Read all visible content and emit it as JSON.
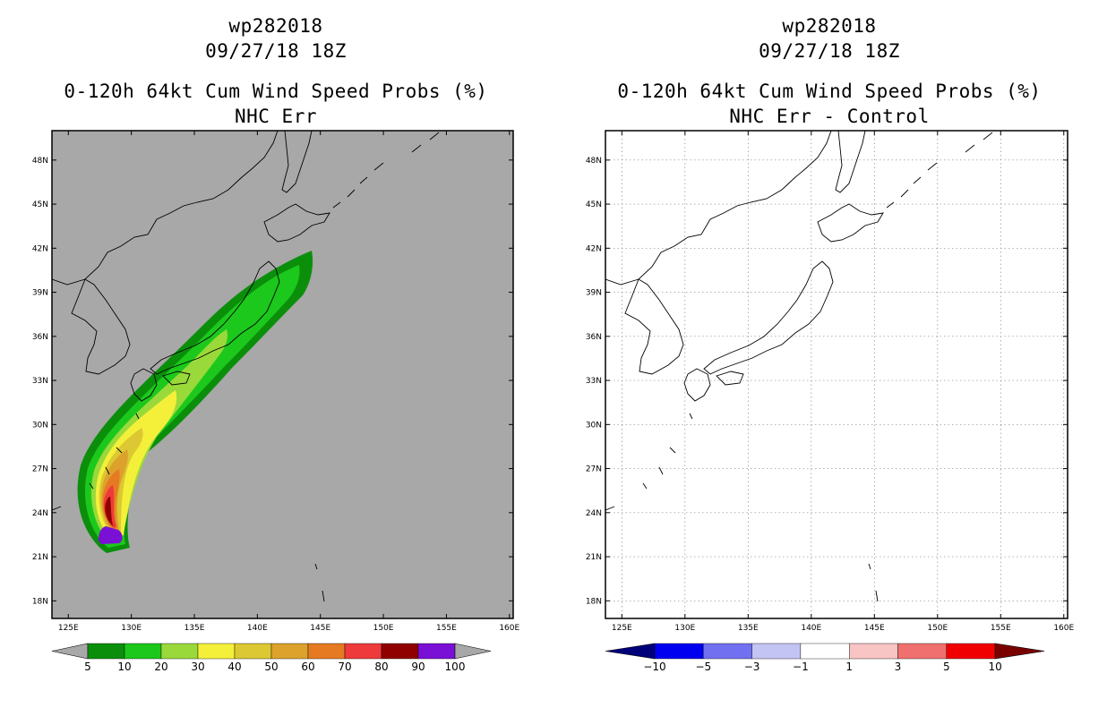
{
  "chart_data": [
    {
      "type": "heatmap",
      "storm_id": "wp282018",
      "datetime": "09/27/18 18Z",
      "title": "0-120h 64kt Cum Wind Speed Probs (%)",
      "subtitle": "NHC Err",
      "x_ticks": [
        "125E",
        "130E",
        "135E",
        "140E",
        "145E",
        "150E",
        "155E",
        "160E"
      ],
      "y_ticks": [
        "18N",
        "21N",
        "24N",
        "27N",
        "30N",
        "33N",
        "36N",
        "39N",
        "42N",
        "45N",
        "48N"
      ],
      "xlim": [
        123.7,
        160.3
      ],
      "ylim": [
        16.8,
        50.0
      ],
      "colorbar": {
        "labels": [
          "5",
          "10",
          "20",
          "30",
          "40",
          "50",
          "60",
          "70",
          "80",
          "90",
          "100"
        ],
        "colors": [
          "#0b8f0b",
          "#1cc81c",
          "#9ad93a",
          "#f4f03a",
          "#dcc832",
          "#dca22c",
          "#e67a22",
          "#ee3a3a",
          "#900000",
          "#7a0fd6"
        ]
      },
      "probability_bands": [
        {
          "threshold": "5",
          "color": "#0b8f0b"
        },
        {
          "threshold": "10",
          "color": "#1cc81c"
        },
        {
          "threshold": "20",
          "color": "#9ad93a"
        },
        {
          "threshold": "30",
          "color": "#f4f03a"
        },
        {
          "threshold": "40",
          "color": "#dcc832"
        },
        {
          "threshold": "50",
          "color": "#dca22c"
        },
        {
          "threshold": "60",
          "color": "#e67a22"
        },
        {
          "threshold": "70",
          "color": "#ee3a3a"
        },
        {
          "threshold": "80",
          "color": "#900000"
        },
        {
          "threshold": "90",
          "color": "#7a0fd6"
        }
      ]
    },
    {
      "type": "heatmap",
      "storm_id": "wp282018",
      "datetime": "09/27/18 18Z",
      "title": "0-120h 64kt Cum Wind Speed Probs (%)",
      "subtitle": "NHC Err - Control",
      "x_ticks": [
        "125E",
        "130E",
        "135E",
        "140E",
        "145E",
        "150E",
        "155E",
        "160E"
      ],
      "y_ticks": [
        "18N",
        "21N",
        "24N",
        "27N",
        "30N",
        "33N",
        "36N",
        "39N",
        "42N",
        "45N",
        "48N"
      ],
      "xlim": [
        123.7,
        160.3
      ],
      "ylim": [
        16.8,
        50.0
      ],
      "colorbar": {
        "labels": [
          "-10",
          "-5",
          "-3",
          "-1",
          "1",
          "3",
          "5",
          "10"
        ],
        "colors": [
          "#00007a",
          "#0000f0",
          "#7070f0",
          "#c4c4f4",
          "#ffffff",
          "#f8c4c4",
          "#f07070",
          "#f00000",
          "#7a0000"
        ]
      }
    }
  ]
}
